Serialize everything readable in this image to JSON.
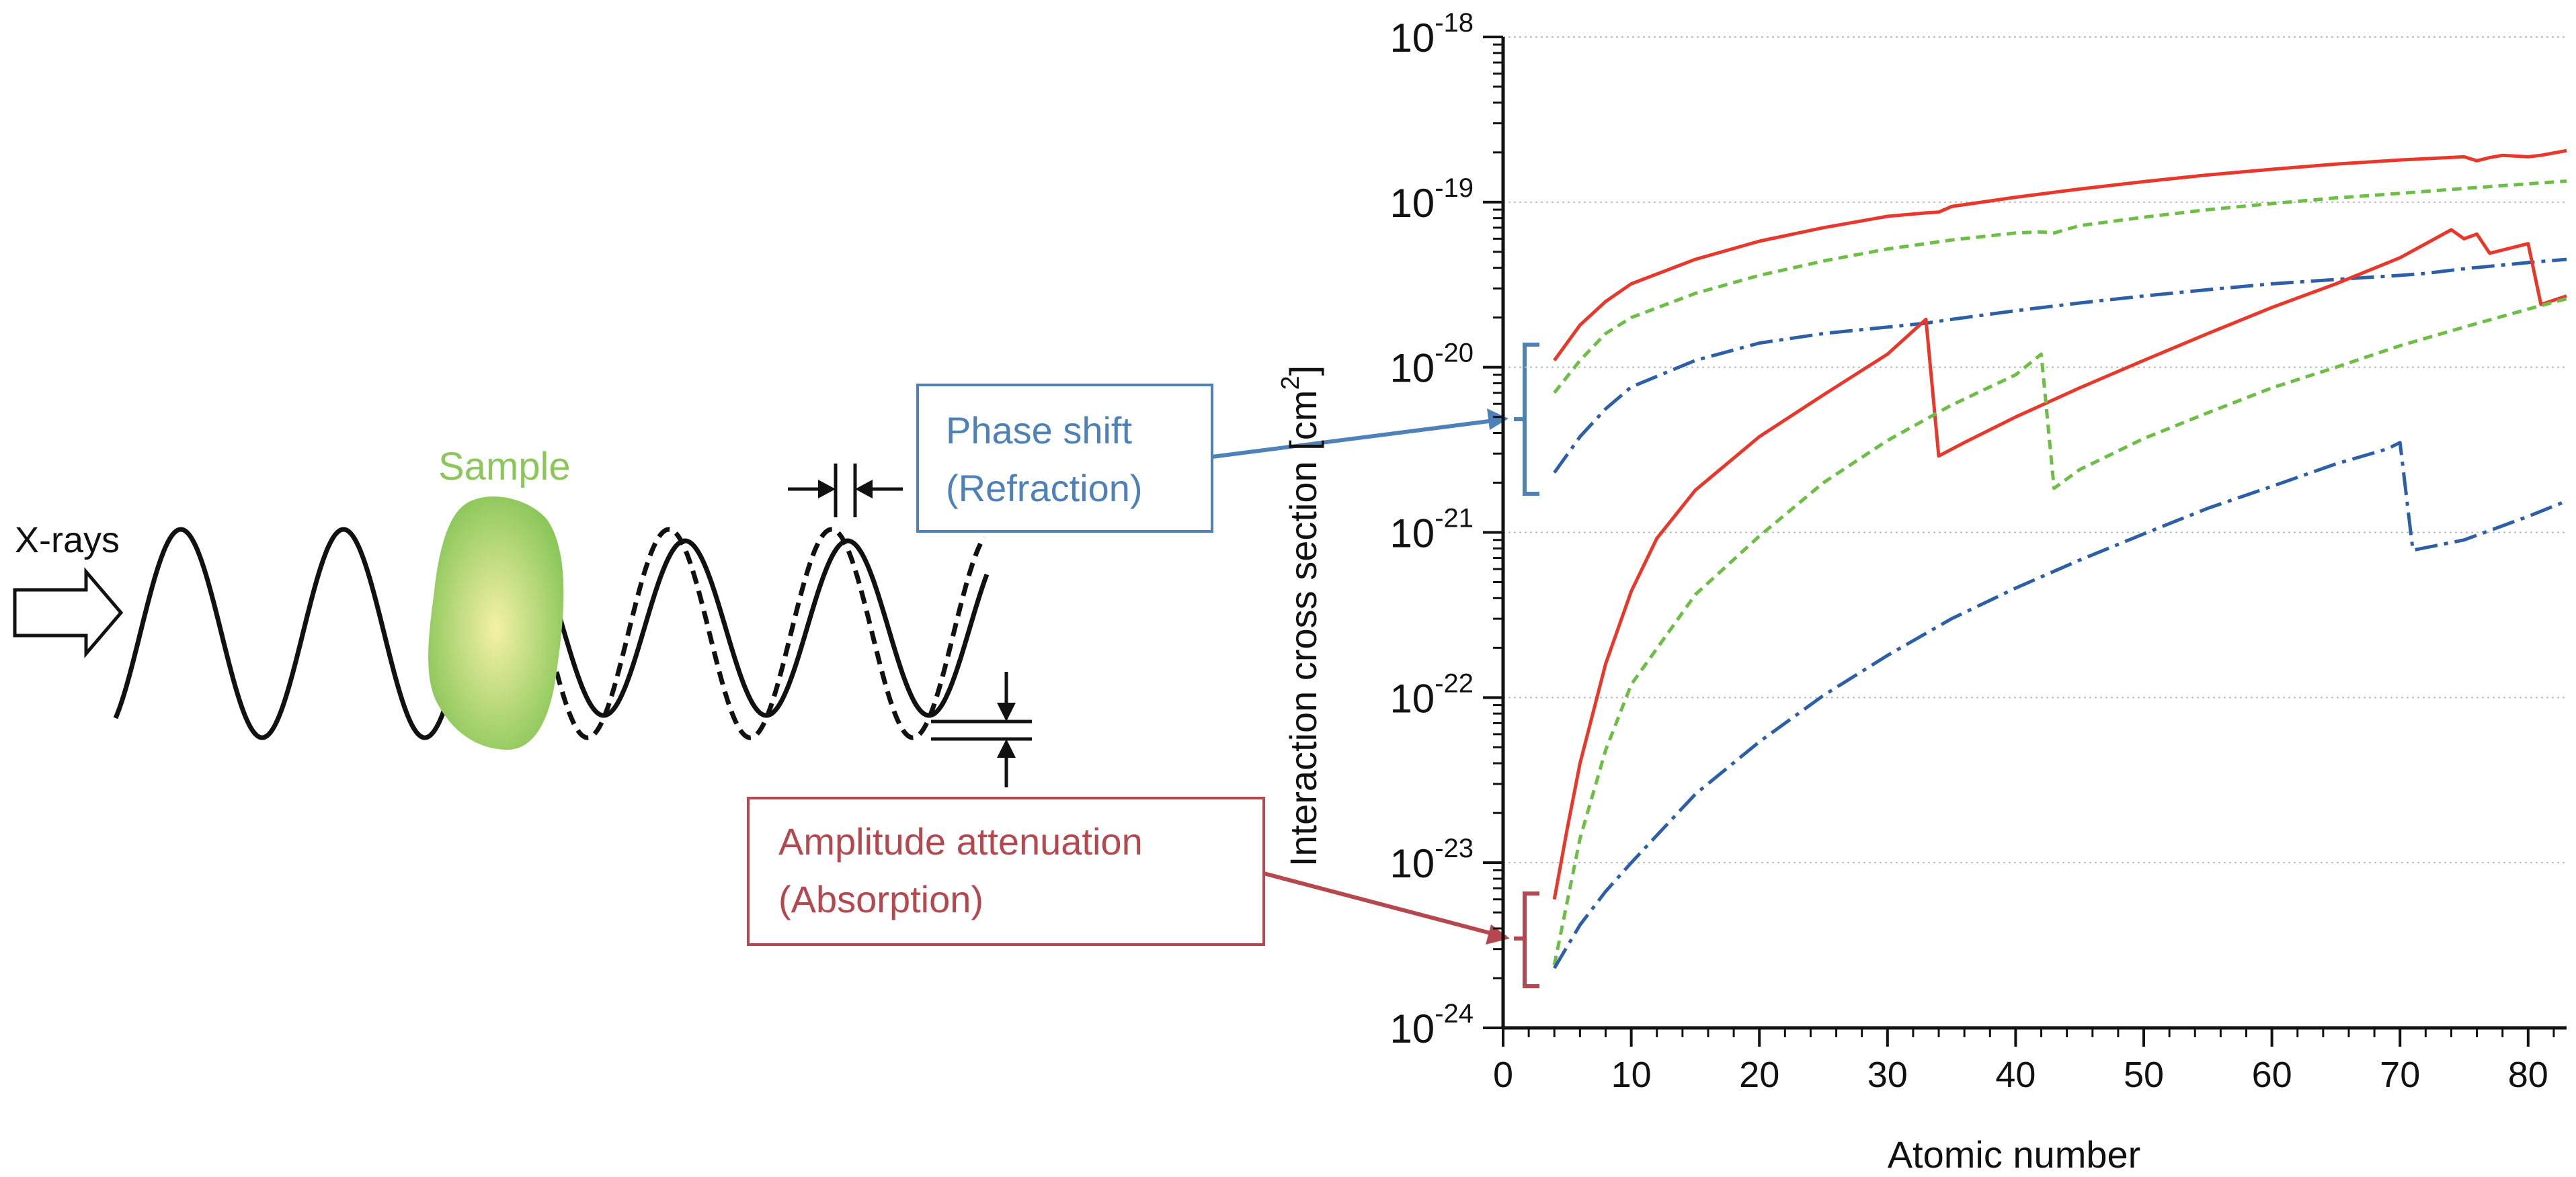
{
  "schematic": {
    "source_label": "X-rays",
    "sample_label": "Sample",
    "phase_box": {
      "line1": "Phase shift",
      "line2": "(Refraction)"
    },
    "amp_box": {
      "line1": "Amplitude attenuation",
      "line2": "(Absorption)"
    }
  },
  "colors": {
    "red": "#e8382b",
    "green": "#6cbe45",
    "blue": "#2d5fa6",
    "phase_accent": "#4d81b8",
    "amp_accent": "#b5474f",
    "sample_fill": "#8cc75a",
    "sample_core": "#f4f1a6",
    "wave": "#111111"
  },
  "chart_data": {
    "type": "line",
    "xlabel": "Atomic number",
    "ylabel": "Interaction cross section [cm",
    "ylabel_sup": "2",
    "ylabel_end": "]",
    "xlim": [
      0,
      83
    ],
    "ylim_exp": [
      -24,
      -18
    ],
    "log_y": true,
    "grid": "horizontal dotted at decades",
    "x_ticks": [
      0,
      10,
      20,
      30,
      40,
      50,
      60,
      70,
      80
    ],
    "x_tick_labels": [
      "0",
      "10",
      "20",
      "30",
      "40",
      "50",
      "60",
      "70",
      "80"
    ],
    "y_ticks": [
      {
        "exp": -18,
        "base": "10",
        "sup": "-18"
      },
      {
        "exp": -19,
        "base": "10",
        "sup": "-19"
      },
      {
        "exp": -20,
        "base": "10",
        "sup": "-20"
      },
      {
        "exp": -21,
        "base": "10",
        "sup": "-21"
      },
      {
        "exp": -22,
        "base": "10",
        "sup": "-22"
      },
      {
        "exp": -23,
        "base": "10",
        "sup": "-23"
      },
      {
        "exp": -24,
        "base": "10",
        "sup": "-24"
      }
    ],
    "series": [
      {
        "group": "phase",
        "color": "red",
        "dash": "solid",
        "points": [
          [
            4,
            1.1e-20
          ],
          [
            6,
            1.8e-20
          ],
          [
            8,
            2.5e-20
          ],
          [
            10,
            3.2e-20
          ],
          [
            15,
            4.5e-20
          ],
          [
            20,
            5.8e-20
          ],
          [
            25,
            7e-20
          ],
          [
            30,
            8.2e-20
          ],
          [
            33,
            8.6e-20
          ],
          [
            34,
            8.7e-20
          ],
          [
            35,
            9.4e-20
          ],
          [
            40,
            1.07e-19
          ],
          [
            45,
            1.2e-19
          ],
          [
            50,
            1.33e-19
          ],
          [
            55,
            1.46e-19
          ],
          [
            60,
            1.58e-19
          ],
          [
            65,
            1.7e-19
          ],
          [
            70,
            1.8e-19
          ],
          [
            75,
            1.88e-19
          ],
          [
            76,
            1.78e-19
          ],
          [
            77,
            1.86e-19
          ],
          [
            78,
            1.92e-19
          ],
          [
            80,
            1.88e-19
          ],
          [
            81,
            1.92e-19
          ],
          [
            83,
            2.05e-19
          ]
        ]
      },
      {
        "group": "phase",
        "color": "green",
        "dash": "dashed",
        "points": [
          [
            4,
            7e-21
          ],
          [
            6,
            1.1e-20
          ],
          [
            8,
            1.6e-20
          ],
          [
            10,
            2e-20
          ],
          [
            15,
            2.8e-20
          ],
          [
            20,
            3.6e-20
          ],
          [
            25,
            4.4e-20
          ],
          [
            30,
            5.2e-20
          ],
          [
            35,
            5.9e-20
          ],
          [
            40,
            6.5e-20
          ],
          [
            42,
            6.6e-20
          ],
          [
            43,
            6.5e-20
          ],
          [
            45,
            7.2e-20
          ],
          [
            50,
            8.1e-20
          ],
          [
            55,
            9e-20
          ],
          [
            60,
            9.8e-20
          ],
          [
            65,
            1.06e-19
          ],
          [
            70,
            1.13e-19
          ],
          [
            75,
            1.21e-19
          ],
          [
            80,
            1.29e-19
          ],
          [
            83,
            1.34e-19
          ]
        ]
      },
      {
        "group": "phase",
        "color": "blue",
        "dash": "dashdot",
        "points": [
          [
            4,
            2.3e-21
          ],
          [
            6,
            3.8e-21
          ],
          [
            8,
            5.6e-21
          ],
          [
            10,
            7.6e-21
          ],
          [
            15,
            1.1e-20
          ],
          [
            20,
            1.4e-20
          ],
          [
            25,
            1.6e-20
          ],
          [
            30,
            1.75e-20
          ],
          [
            33,
            1.85e-20
          ],
          [
            35,
            1.95e-20
          ],
          [
            40,
            2.2e-20
          ],
          [
            45,
            2.45e-20
          ],
          [
            50,
            2.7e-20
          ],
          [
            55,
            2.95e-20
          ],
          [
            60,
            3.2e-20
          ],
          [
            65,
            3.4e-20
          ],
          [
            70,
            3.6e-20
          ],
          [
            72,
            3.7e-20
          ],
          [
            75,
            3.95e-20
          ],
          [
            80,
            4.3e-20
          ],
          [
            83,
            4.5e-20
          ]
        ]
      },
      {
        "group": "absorption",
        "color": "red",
        "dash": "solid",
        "points": [
          [
            4,
            6e-24
          ],
          [
            5,
            1.6e-23
          ],
          [
            6,
            4e-23
          ],
          [
            8,
            1.6e-22
          ],
          [
            10,
            4.4e-22
          ],
          [
            12,
            9.2e-22
          ],
          [
            15,
            1.8e-21
          ],
          [
            20,
            3.8e-21
          ],
          [
            25,
            6.8e-21
          ],
          [
            30,
            1.2e-20
          ],
          [
            33,
            1.95e-20
          ],
          [
            34,
            2.9e-21
          ],
          [
            36,
            3.5e-21
          ],
          [
            40,
            5e-21
          ],
          [
            45,
            7.5e-21
          ],
          [
            50,
            1.1e-20
          ],
          [
            55,
            1.6e-20
          ],
          [
            60,
            2.3e-20
          ],
          [
            65,
            3.2e-20
          ],
          [
            70,
            4.6e-20
          ],
          [
            74,
            6.8e-20
          ],
          [
            75,
            6e-20
          ],
          [
            76,
            6.4e-20
          ],
          [
            77,
            4.9e-20
          ],
          [
            80,
            5.6e-20
          ],
          [
            81,
            2.4e-20
          ],
          [
            83,
            2.7e-20
          ]
        ]
      },
      {
        "group": "absorption",
        "color": "green",
        "dash": "dashed",
        "points": [
          [
            4,
            2.4e-24
          ],
          [
            6,
            1.4e-23
          ],
          [
            8,
            4.8e-23
          ],
          [
            10,
            1.2e-22
          ],
          [
            15,
            4.2e-22
          ],
          [
            20,
            9.5e-22
          ],
          [
            25,
            2e-21
          ],
          [
            30,
            3.6e-21
          ],
          [
            35,
            5.9e-21
          ],
          [
            40,
            9e-21
          ],
          [
            42,
            1.2e-20
          ],
          [
            43,
            1.85e-21
          ],
          [
            45,
            2.4e-21
          ],
          [
            50,
            3.7e-21
          ],
          [
            55,
            5.3e-21
          ],
          [
            60,
            7.5e-21
          ],
          [
            65,
            1e-20
          ],
          [
            70,
            1.35e-20
          ],
          [
            75,
            1.75e-20
          ],
          [
            80,
            2.25e-20
          ],
          [
            83,
            2.6e-20
          ]
        ]
      },
      {
        "group": "absorption",
        "color": "blue",
        "dash": "dashdot",
        "points": [
          [
            4,
            2.3e-24
          ],
          [
            6,
            4.2e-24
          ],
          [
            8,
            6.7e-24
          ],
          [
            10,
            1e-23
          ],
          [
            15,
            2.6e-23
          ],
          [
            20,
            5.4e-23
          ],
          [
            25,
            1.03e-22
          ],
          [
            30,
            1.8e-22
          ],
          [
            35,
            3e-22
          ],
          [
            40,
            4.6e-22
          ],
          [
            45,
            6.8e-22
          ],
          [
            50,
            9.8e-22
          ],
          [
            55,
            1.4e-21
          ],
          [
            60,
            1.9e-21
          ],
          [
            65,
            2.6e-21
          ],
          [
            69,
            3.2e-21
          ],
          [
            70,
            3.5e-21
          ],
          [
            71,
            7.8e-22
          ],
          [
            75,
            9e-22
          ],
          [
            80,
            1.25e-21
          ],
          [
            83,
            1.55e-21
          ]
        ]
      }
    ]
  }
}
